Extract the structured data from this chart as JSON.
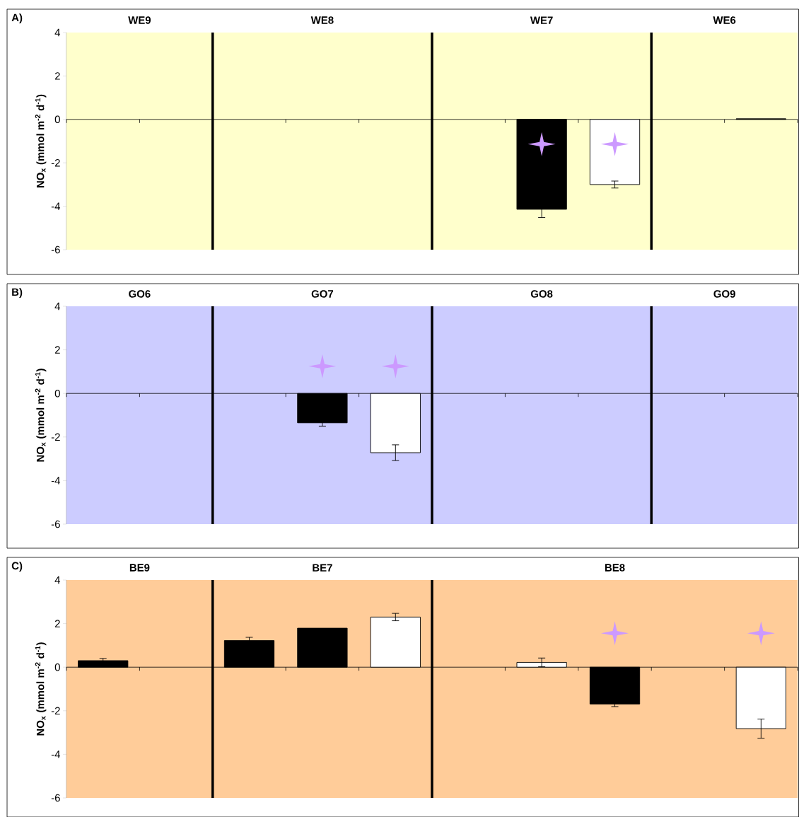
{
  "chart_data": [
    {
      "type": "bar",
      "title": "A)",
      "ylabel": "NO$_{x}$ (mmol m$^{-2}$ d$^{-1}$)",
      "categories": [
        null,
        null,
        null,
        null,
        null,
        null,
        null,
        null,
        null,
        null
      ],
      "ylim": [
        -6,
        4
      ],
      "yticks": [
        -6,
        -4,
        -2,
        0,
        2,
        4
      ],
      "marker": "star",
      "annotations": [
        "WE9",
        "WE8",
        "WE7",
        "WE6"
      ],
      "bands": [
        {
          "axis": "y",
          "from": -6,
          "to": 4,
          "color": "#ffffcc"
        }
      ],
      "series": [
        {
          "values": [
            0,
            0,
            0,
            0,
            0,
            0,
            -4.14,
            -3.0,
            0,
            0.03
          ],
          "colors": [
            "#000000",
            "#000000",
            "#000000",
            "#000000",
            "#000000",
            "#000000",
            "#000000",
            "#ffffff",
            "#000000",
            "#000000"
          ],
          "errors": [
            null,
            null,
            null,
            null,
            null,
            null,
            0.38,
            0.16,
            null,
            null
          ]
        },
        {
          "type": "scatter",
          "values": [
            null,
            null,
            null,
            null,
            null,
            null,
            -1.14,
            -1.14,
            null,
            null
          ],
          "color": "#cc99ff"
        }
      ]
    },
    {
      "type": "bar",
      "title": "B)",
      "ylabel": "NO$_{x}$ (mmol m$^{-2}$ d$^{-1}$)",
      "categories": [
        null,
        null,
        null,
        null,
        null,
        null,
        null,
        null,
        null,
        null
      ],
      "ylim": [
        -6,
        4
      ],
      "yticks": [
        -6,
        -4,
        -2,
        0,
        2,
        4
      ],
      "marker": "star",
      "annotations": [
        "GO6",
        "GO7",
        "GO8",
        "GO9"
      ],
      "bands": [
        {
          "axis": "y",
          "from": -6,
          "to": 4,
          "color": "#ccccff"
        }
      ],
      "series": [
        {
          "values": [
            0,
            0,
            0,
            -1.35,
            -2.72,
            0,
            0,
            0,
            0,
            0
          ],
          "colors": [
            "#000000",
            "#000000",
            "#000000",
            "#000000",
            "#ffffff",
            "#000000",
            "#000000",
            "#000000",
            "#000000",
            "#000000"
          ],
          "errors": [
            null,
            null,
            null,
            0.15,
            0.36,
            null,
            null,
            null,
            null,
            null
          ]
        },
        {
          "type": "scatter",
          "values": [
            null,
            null,
            null,
            1.25,
            1.25,
            null,
            null,
            null,
            null,
            null
          ],
          "color": "#cc99ff"
        }
      ]
    },
    {
      "type": "bar",
      "title": "C)",
      "ylabel": "NO$_{x}$ (mmol m$^{-2}$ d$^{-1}$)",
      "categories": [
        null,
        null,
        null,
        null,
        null,
        null,
        null,
        null,
        null,
        null
      ],
      "ylim": [
        -6,
        4
      ],
      "yticks": [
        -6,
        -4,
        -2,
        0,
        2,
        4
      ],
      "marker": "star",
      "annotations": [
        "BE9",
        "BE7",
        "BE8"
      ],
      "bands": [
        {
          "axis": "y",
          "from": -6,
          "to": 4,
          "color": "#ffcc99"
        }
      ],
      "series": [
        {
          "values": [
            0.3,
            0,
            1.22,
            1.79,
            2.3,
            0,
            0.22,
            -1.69,
            0,
            -2.82
          ],
          "colors": [
            "#000000",
            "#000000",
            "#000000",
            "#000000",
            "#ffffff",
            "#000000",
            "#ffffff",
            "#000000",
            "#000000",
            "#ffffff"
          ],
          "errors": [
            0.1,
            null,
            0.15,
            null,
            0.17,
            null,
            0.2,
            0.12,
            null,
            0.44
          ]
        },
        {
          "type": "scatter",
          "values": [
            null,
            null,
            null,
            null,
            null,
            null,
            null,
            1.56,
            null,
            1.56
          ],
          "color": "#cc99ff"
        }
      ]
    }
  ]
}
